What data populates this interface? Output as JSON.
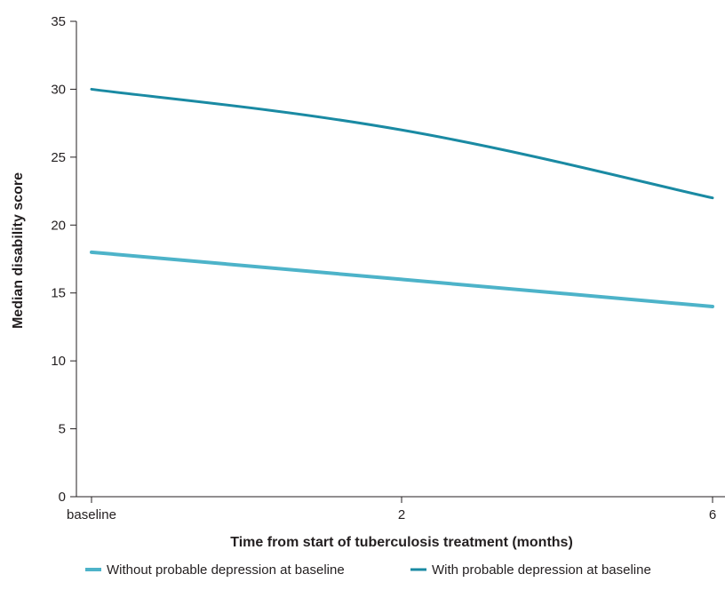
{
  "chart_data": {
    "type": "line",
    "xlabel": "Time from start of tuberculosis treatment (months)",
    "ylabel": "Median disability score",
    "x_ticks": [
      "baseline",
      "2",
      "6"
    ],
    "x": [
      "baseline",
      "2",
      "6"
    ],
    "ylim": [
      0,
      35
    ],
    "yticks": [
      0,
      5,
      10,
      15,
      20,
      25,
      30,
      35
    ],
    "grid": false,
    "legend_position": "bottom",
    "series": [
      {
        "name": "Without probable depression at baseline",
        "values": [
          18,
          16,
          14
        ],
        "color": "#4db3c9"
      },
      {
        "name": "With probable depression at baseline",
        "values": [
          30,
          27,
          22
        ],
        "color": "#1a8aa3"
      }
    ]
  }
}
